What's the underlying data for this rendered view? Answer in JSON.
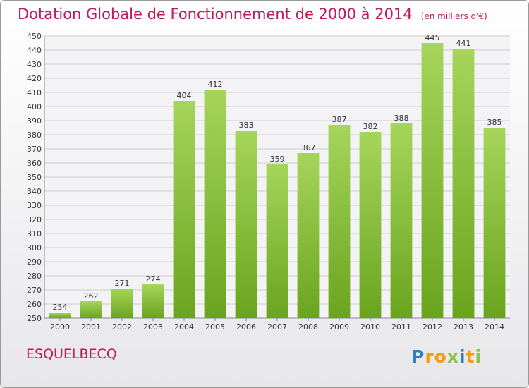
{
  "header": {
    "title": "Dotation Globale de Fonctionnement de 2000 à 2014",
    "unit_note": "(en milliers d'€)"
  },
  "footer": {
    "place_name": "ESQUELBECQ",
    "logo_text": "Proxiti",
    "logo_letters": [
      {
        "ch": "P",
        "color": "#2f7fc1"
      },
      {
        "ch": "r",
        "color": "#f39c12"
      },
      {
        "ch": "o",
        "color": "#f39c12"
      },
      {
        "ch": "x",
        "color": "#8bc34a"
      },
      {
        "ch": "i",
        "color": "#2f7fc1"
      },
      {
        "ch": "t",
        "color": "#f39c12"
      },
      {
        "ch": "i",
        "color": "#8bc34a"
      }
    ]
  },
  "colors": {
    "title": "#c2185b",
    "bar_light": "#a5d55a",
    "bar_dark": "#6aa41e",
    "grid": "#cccccc"
  },
  "chart_data": {
    "type": "bar",
    "title": "Dotation Globale de Fonctionnement de 2000 à 2014",
    "subtitle": "(en milliers d'€)",
    "categories": [
      "2000",
      "2001",
      "2002",
      "2003",
      "2004",
      "2005",
      "2006",
      "2007",
      "2008",
      "2009",
      "2010",
      "2011",
      "2012",
      "2013",
      "2014"
    ],
    "values": [
      254,
      262,
      271,
      274,
      404,
      412,
      383,
      359,
      367,
      387,
      382,
      388,
      445,
      441,
      385
    ],
    "ylim": [
      250,
      450
    ],
    "ytick_step": 10,
    "grid": true,
    "data_labels": true
  }
}
